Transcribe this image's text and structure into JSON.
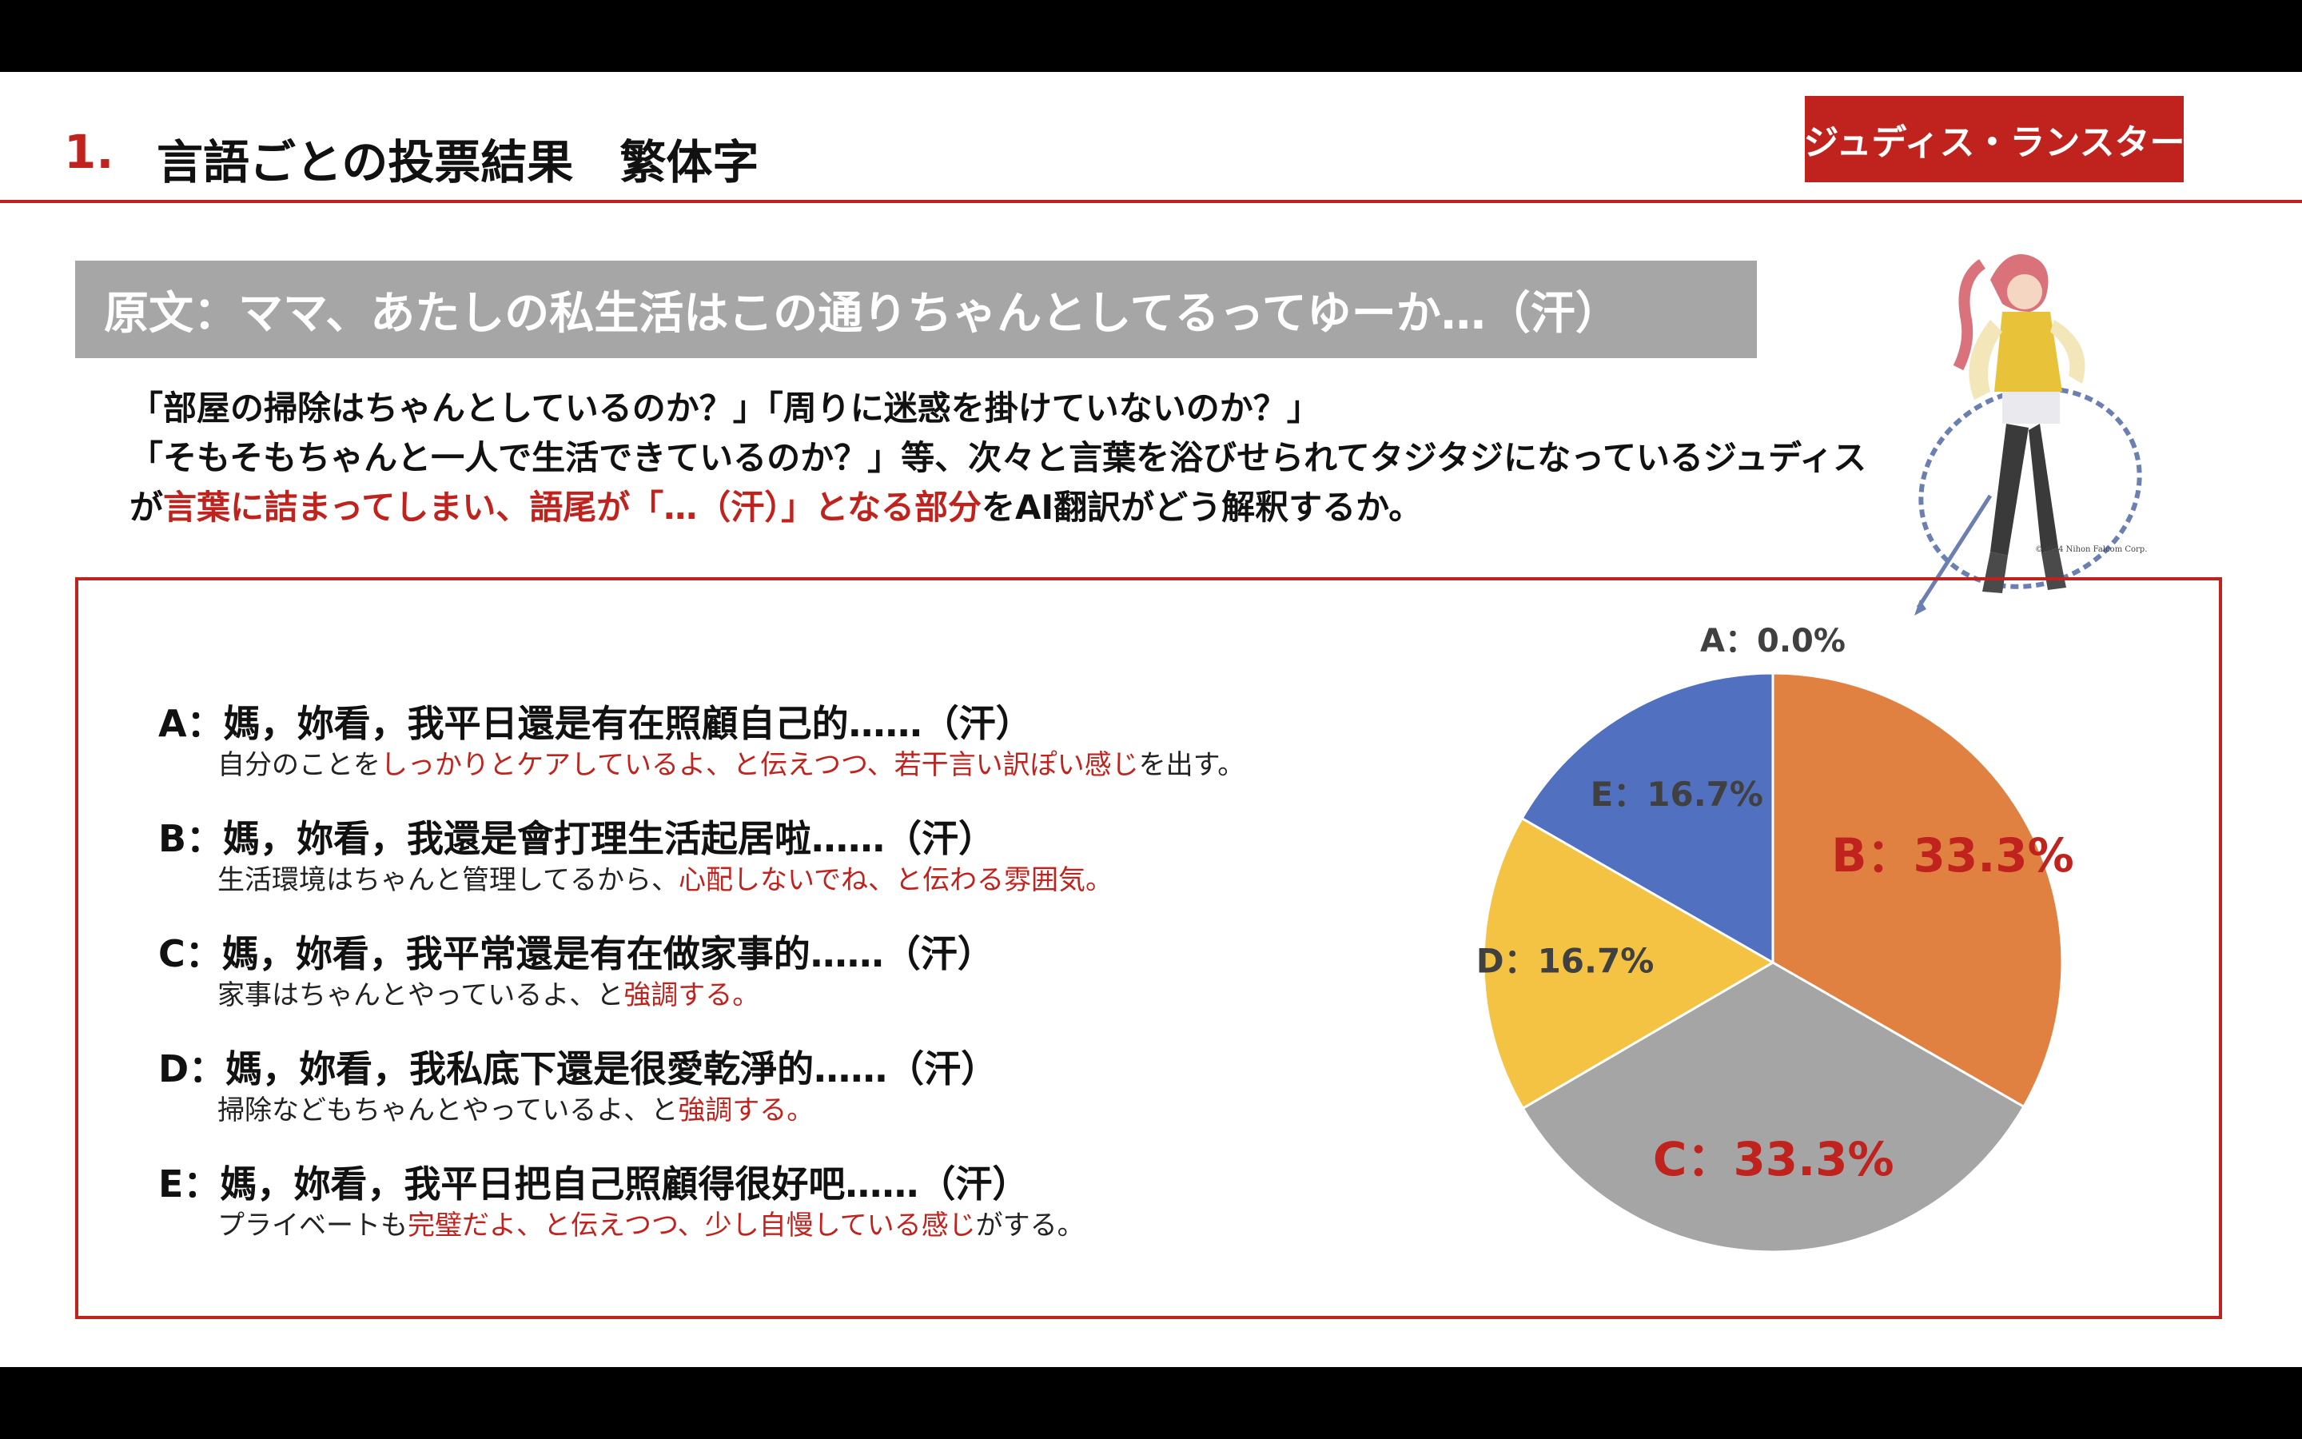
{
  "header": {
    "number": "1.",
    "title": "言語ごとの投票結果　繁体字",
    "character_badge": "ジュディス・ランスター"
  },
  "quote": {
    "text": "原文：ママ、あたしの私生活はこの通りちゃんとしてるってゆーか…（汗）"
  },
  "description": {
    "line1": "「部屋の掃除はちゃんとしているのか？」「周りに迷惑を掛けていないのか？」",
    "line2": "「そもそもちゃんと一人で生活できているのか？」等、次々と言葉を浴びせられてタジタジになっているジュディス",
    "line3_a": "が",
    "line3_hl": "言葉に詰まってしまい、語尾が「…（汗）」となる部分",
    "line3_b": "をAI翻訳がどう解釈するか。"
  },
  "image": {
    "copyright": "©2024 Nihon Falcom Corp."
  },
  "options": [
    {
      "main": "A：媽，妳看，我平日還是有在照顧自己的……（汗）",
      "sub_a": "自分のことを",
      "sub_hl": "しっかりとケアしているよ、と伝えつつ、若干言い訳ぽい感じ",
      "sub_b": "を出す。"
    },
    {
      "main": "B：媽，妳看，我還是會打理生活起居啦……（汗）",
      "sub_a": "生活環境はちゃんと管理してるから、",
      "sub_hl": "心配しないでね、と伝わる雰囲気。",
      "sub_b": ""
    },
    {
      "main": "C：媽，妳看，我平常還是有在做家事的……（汗）",
      "sub_a": "家事はちゃんとやっているよ、と",
      "sub_hl": "強調する。",
      "sub_b": ""
    },
    {
      "main": "D：媽，妳看，我私底下還是很愛乾淨的……（汗）",
      "sub_a": "掃除などもちゃんとやっているよ、と",
      "sub_hl": "強調する。",
      "sub_b": ""
    },
    {
      "main": "E：媽，妳看，我平日把自己照顧得很好吧……（汗）",
      "sub_a": "プライベートも",
      "sub_hl": "完璧だよ、と伝えつつ、少し自慢している感じ",
      "sub_b": "がする。"
    }
  ],
  "chart_data": {
    "type": "pie",
    "categories": [
      "A",
      "B",
      "C",
      "D",
      "E"
    ],
    "values": [
      0.0,
      33.3,
      33.3,
      16.7,
      16.7
    ],
    "labels": [
      "A：0.0%",
      "B：33.3%",
      "C：33.3%",
      "D：16.7%",
      "E：16.7%"
    ],
    "colors": [
      "#4472c4",
      "#e08142",
      "#a5a5a5",
      "#f4c343",
      "#5171c0"
    ],
    "label_colors": [
      "#404040",
      "#c0231e",
      "#c0231e",
      "#404040",
      "#404040"
    ],
    "start": "12 o'clock, clockwise"
  },
  "colors": {
    "accent": "#c0231e",
    "quote_bg": "#a6a6a6"
  }
}
